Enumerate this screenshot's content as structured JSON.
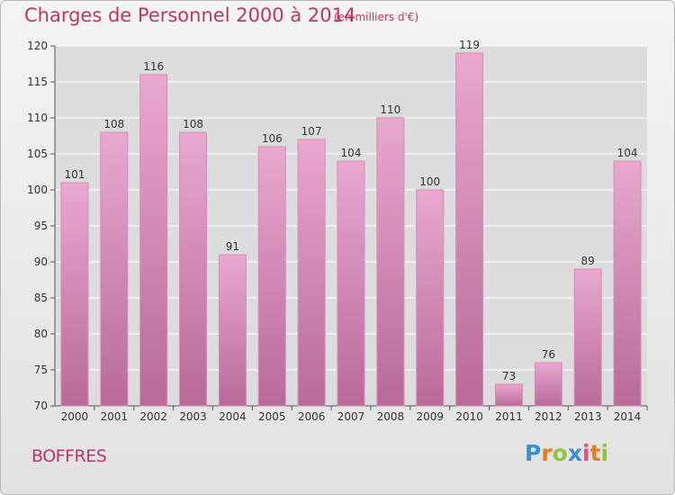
{
  "header": {
    "title": "Charges de Personnel 2000 à 2014",
    "subtitle": "(en milliers d'€)"
  },
  "footer": {
    "commune": "BOFFRES",
    "logo_letters": [
      {
        "ch": "P",
        "color": "#3a8fd0"
      },
      {
        "ch": "r",
        "color": "#e87d1e"
      },
      {
        "ch": "o",
        "color": "#8cc63f"
      },
      {
        "ch": "x",
        "color": "#3a8fd0"
      },
      {
        "ch": "i",
        "color": "#e04e8a"
      },
      {
        "ch": "t",
        "color": "#e87d1e"
      },
      {
        "ch": "i",
        "color": "#8cc63f"
      }
    ]
  },
  "colors": {
    "bar_top": "#e8a8d0",
    "bar_bottom": "#b86a98",
    "bar_edge": "#d88ab8",
    "plot_bg": "#dcdcdc",
    "accent": "#c0336a"
  },
  "chart_data": {
    "type": "bar",
    "title": "Charges de Personnel 2000 à 2014",
    "subtitle": "(en milliers d'€)",
    "categories": [
      "2000",
      "2001",
      "2002",
      "2003",
      "2004",
      "2005",
      "2006",
      "2007",
      "2008",
      "2009",
      "2010",
      "2011",
      "2012",
      "2013",
      "2014"
    ],
    "values": [
      101,
      108,
      116,
      108,
      91,
      106,
      107,
      104,
      110,
      100,
      119,
      73,
      76,
      89,
      104
    ],
    "ylim": [
      70,
      120
    ],
    "yticks": [
      70,
      75,
      80,
      85,
      90,
      95,
      100,
      105,
      110,
      115,
      120
    ],
    "grid": true,
    "data_labels": true
  }
}
